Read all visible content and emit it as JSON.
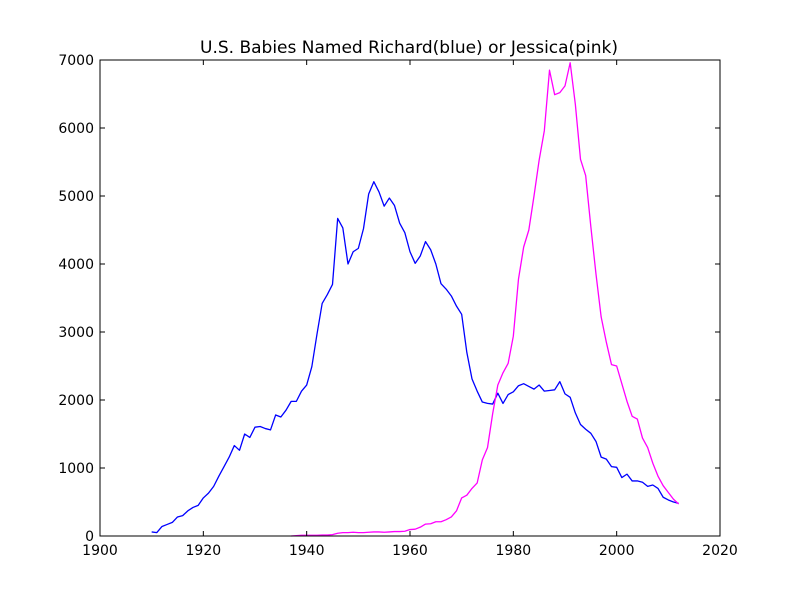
{
  "chart_data": {
    "type": "line",
    "title": "U.S. Babies Named Richard(blue) or Jessica(pink)",
    "xlabel": "",
    "ylabel": "",
    "xlim": [
      1900,
      2020
    ],
    "ylim": [
      0,
      7000
    ],
    "x_ticks": [
      "1900",
      "1920",
      "1940",
      "1960",
      "1980",
      "2000",
      "2020"
    ],
    "y_ticks": [
      "0",
      "1000",
      "2000",
      "3000",
      "4000",
      "5000",
      "6000",
      "7000"
    ],
    "grid": false,
    "legend": "none",
    "series": [
      {
        "color": "#0000ff",
        "x": [
          1910,
          1911,
          1912,
          1913,
          1914,
          1915,
          1916,
          1917,
          1918,
          1919,
          1920,
          1921,
          1922,
          1923,
          1924,
          1925,
          1926,
          1927,
          1928,
          1929,
          1930,
          1931,
          1932,
          1933,
          1934,
          1935,
          1936,
          1937,
          1938,
          1939,
          1940,
          1941,
          1942,
          1943,
          1944,
          1945,
          1946,
          1947,
          1948,
          1949,
          1950,
          1951,
          1952,
          1953,
          1954,
          1955,
          1956,
          1957,
          1958,
          1959,
          1960,
          1961,
          1962,
          1963,
          1964,
          1965,
          1966,
          1967,
          1968,
          1969,
          1970,
          1971,
          1972,
          1973,
          1974,
          1975,
          1976,
          1977,
          1978,
          1979,
          1980,
          1981,
          1982,
          1983,
          1984,
          1985,
          1986,
          1987,
          1988,
          1989,
          1990,
          1991,
          1992,
          1993,
          1994,
          1995,
          1996,
          1997,
          1998,
          1999,
          2000,
          2001,
          2002,
          2003,
          2004,
          2005,
          2006,
          2007,
          2008,
          2009,
          2010,
          2011,
          2012
        ],
        "y": [
          60,
          50,
          140,
          170,
          200,
          280,
          300,
          370,
          420,
          450,
          560,
          630,
          730,
          880,
          1020,
          1160,
          1330,
          1260,
          1500,
          1450,
          1600,
          1610,
          1580,
          1560,
          1780,
          1750,
          1850,
          1980,
          1980,
          2130,
          2220,
          2490,
          2970,
          3420,
          3550,
          3700,
          4670,
          4530,
          4000,
          4180,
          4230,
          4520,
          5030,
          5210,
          5060,
          4850,
          4970,
          4860,
          4600,
          4460,
          4180,
          4010,
          4120,
          4330,
          4210,
          4000,
          3710,
          3630,
          3530,
          3380,
          3260,
          2700,
          2310,
          2130,
          1970,
          1950,
          1940,
          2100,
          1950,
          2080,
          2120,
          2210,
          2240,
          2200,
          2160,
          2220,
          2130,
          2140,
          2150,
          2270,
          2090,
          2040,
          1810,
          1640,
          1570,
          1510,
          1390,
          1160,
          1130,
          1020,
          1010,
          860,
          910,
          810,
          810,
          790,
          730,
          750,
          700,
          570,
          530,
          500,
          480
        ]
      },
      {
        "color": "#ff00ff",
        "x": [
          1937,
          1938,
          1939,
          1940,
          1941,
          1942,
          1943,
          1944,
          1945,
          1946,
          1947,
          1948,
          1949,
          1950,
          1951,
          1952,
          1953,
          1954,
          1955,
          1956,
          1957,
          1958,
          1959,
          1960,
          1961,
          1962,
          1963,
          1964,
          1965,
          1966,
          1967,
          1968,
          1969,
          1970,
          1971,
          1972,
          1973,
          1974,
          1975,
          1976,
          1977,
          1978,
          1979,
          1980,
          1981,
          1982,
          1983,
          1984,
          1985,
          1986,
          1987,
          1988,
          1989,
          1990,
          1991,
          1992,
          1993,
          1994,
          1995,
          1996,
          1997,
          1998,
          1999,
          2000,
          2001,
          2002,
          2003,
          2004,
          2005,
          2006,
          2007,
          2008,
          2009,
          2010,
          2011,
          2012
        ],
        "y": [
          0,
          5,
          10,
          10,
          10,
          10,
          15,
          15,
          20,
          40,
          50,
          50,
          55,
          50,
          50,
          55,
          60,
          60,
          55,
          60,
          65,
          65,
          70,
          95,
          100,
          130,
          175,
          180,
          210,
          210,
          240,
          280,
          370,
          560,
          600,
          700,
          780,
          1120,
          1300,
          1800,
          2220,
          2400,
          2540,
          2940,
          3780,
          4250,
          4500,
          5000,
          5530,
          5960,
          6850,
          6490,
          6520,
          6620,
          6960,
          6350,
          5540,
          5300,
          4550,
          3850,
          3220,
          2850,
          2520,
          2500,
          2240,
          1980,
          1760,
          1720,
          1440,
          1300,
          1070,
          880,
          740,
          640,
          540,
          470
        ]
      }
    ]
  }
}
